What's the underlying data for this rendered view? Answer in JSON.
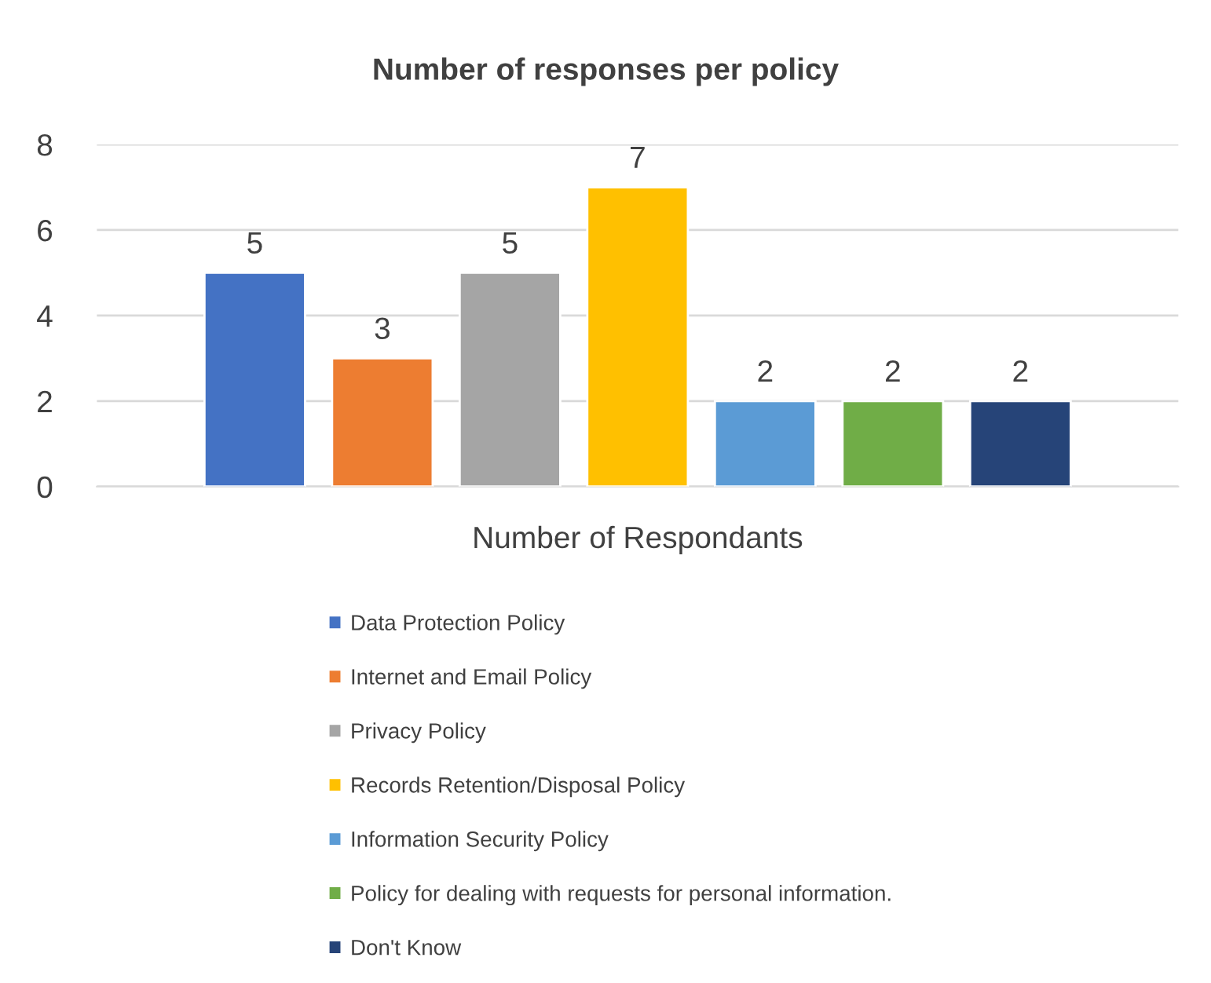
{
  "chart_data": {
    "type": "bar",
    "title": "Number of responses per policy",
    "categories": [
      "Number of Respondants"
    ],
    "series": [
      {
        "name": "Data Protection Policy",
        "color": "#4472c4",
        "values": [
          5
        ]
      },
      {
        "name": "Internet and Email Policy",
        "color": "#ed7d31",
        "values": [
          3
        ]
      },
      {
        "name": "Privacy Policy",
        "color": "#a5a5a5",
        "values": [
          5
        ]
      },
      {
        "name": "Records Retention/Disposal Policy",
        "color": "#ffc000",
        "values": [
          7
        ]
      },
      {
        "name": "Information Security Policy",
        "color": "#5b9bd5",
        "values": [
          2
        ]
      },
      {
        "name": "Policy for dealing with requests for personal information.",
        "color": "#70ad47",
        "values": [
          2
        ]
      },
      {
        "name": "Don't Know",
        "color": "#264478",
        "values": [
          2
        ]
      }
    ],
    "ylim": [
      0,
      8
    ],
    "yticks": [
      0,
      2,
      4,
      6,
      8
    ],
    "grid": "y",
    "legend": "bottom",
    "data_labels": true
  }
}
